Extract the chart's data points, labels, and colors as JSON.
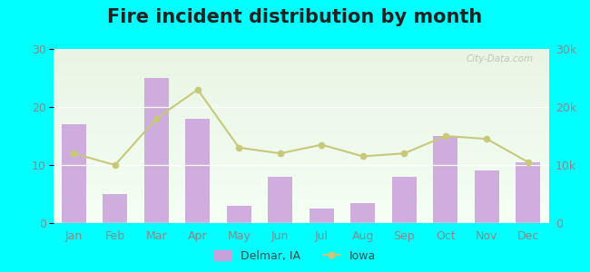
{
  "title": "Fire incident distribution by month",
  "months": [
    "Jan",
    "Feb",
    "Mar",
    "Apr",
    "May",
    "Jun",
    "Jul",
    "Aug",
    "Sep",
    "Oct",
    "Nov",
    "Dec"
  ],
  "delmar_values": [
    17,
    5,
    25,
    18,
    3,
    8,
    2.5,
    3.5,
    8,
    15,
    9,
    10.5
  ],
  "iowa_values": [
    12000,
    10000,
    18000,
    23000,
    13000,
    12000,
    13500,
    11500,
    12000,
    15000,
    14500,
    10500
  ],
  "bar_color": "#c9a0dc",
  "line_color": "#c8c87a",
  "line_marker": "o",
  "bg_color_top": "#e8f5e4",
  "bg_color_bottom": "#f5fff5",
  "outer_bg": "#00ffff",
  "ylim_left": [
    0,
    30
  ],
  "ylim_right": [
    0,
    30000
  ],
  "yticks_left": [
    0,
    10,
    20,
    30
  ],
  "yticks_right": [
    0,
    10000,
    20000,
    30000
  ],
  "ytick_labels_right": [
    "0",
    "10k",
    "20k",
    "30k"
  ],
  "legend_label_bar": "Delmar, IA",
  "legend_label_line": "Iowa",
  "title_fontsize": 15,
  "watermark": "City-Data.com",
  "tick_color": "#888888",
  "grid_color": "#ffffff"
}
